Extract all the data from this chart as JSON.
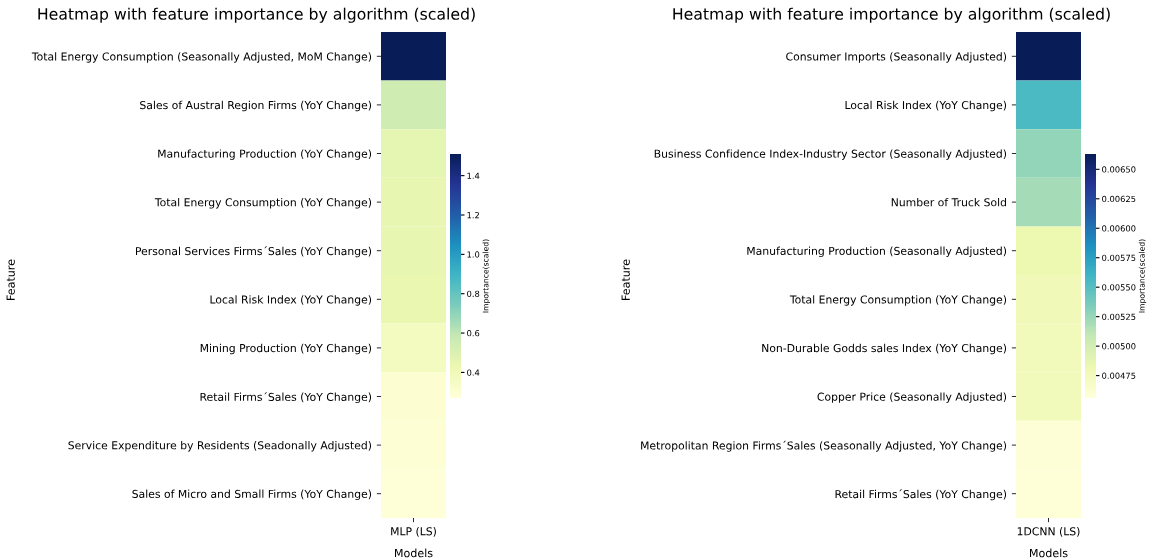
{
  "chart_data": [
    {
      "type": "heatmap",
      "title": "Heatmap with feature importance by algorithm (scaled)",
      "xlabel": "Models",
      "ylabel": "Feature",
      "clabel": "Importance(scaled)",
      "categories": [
        "MLP (LS)"
      ],
      "y_categories": [
        "Total Energy Consumption (Seasonally Adjusted, MoM Change)",
        "Sales of Austral Region Firms (YoY Change)",
        "Manufacturing Production (YoY Change)",
        "Total Energy Consumption (YoY Change)",
        "Personal Services Firms´Sales (YoY Change)",
        "Local Risk Index (YoY Change)",
        "Mining Production (YoY Change)",
        "Retail Firms´Sales (YoY Change)",
        "Service Expenditure by Residents (Seadonally Adjusted)",
        "Sales of Micro and Small Firms (YoY Change)"
      ],
      "cells": [
        [
          1.51
        ],
        [
          0.55
        ],
        [
          0.46
        ],
        [
          0.45
        ],
        [
          0.45
        ],
        [
          0.44
        ],
        [
          0.37
        ],
        [
          0.3
        ],
        [
          0.29
        ],
        [
          0.28
        ]
      ],
      "clim": [
        0.27,
        1.51
      ],
      "cticks": [
        0.4,
        0.6,
        0.8,
        {
          "value": 1.0,
          "label": "1.0"
        },
        1.2,
        1.4
      ]
    },
    {
      "type": "heatmap",
      "title": "Heatmap with feature importance by algorithm (scaled)",
      "xlabel": "Models",
      "ylabel": "Feature",
      "clabel": "Importance(scaled)",
      "categories": [
        "1DCNN (LS)"
      ],
      "y_categories": [
        "Consumer Imports (Seasonally Adjusted)",
        "Local Risk Index (YoY Change)",
        "Business Confidence Index-Industry Sector (Seasonally Adjusted)",
        "Number of Truck Sold",
        "Manufacturing Production (Seasonally Adjusted)",
        "Total Energy Consumption (YoY Change)",
        "Non-Durable Godds sales Index (YoY Change)",
        "Copper Price (Seasonally Adjusted)",
        "Metropolitan Region Firms´Sales (Seasonally Adjusted, YoY Change)",
        "Retail Firms´Sales (YoY Change)"
      ],
      "cells": [
        [
          0.00663
        ],
        [
          0.00555
        ],
        [
          0.00527
        ],
        [
          0.0052
        ],
        [
          0.00482
        ],
        [
          0.00478
        ],
        [
          0.00477
        ],
        [
          0.00476
        ],
        [
          0.00459
        ],
        [
          0.00458
        ]
      ],
      "clim": [
        0.00456,
        0.00663
      ],
      "cticks": [
        0.00475,
        {
          "value": 0.005,
          "label": "0.00500"
        },
        0.00525,
        {
          "value": 0.0055,
          "label": "0.00550"
        },
        0.00575,
        {
          "value": 0.006,
          "label": "0.00600"
        },
        0.00625,
        {
          "value": 0.0065,
          "label": "0.00650"
        }
      ]
    }
  ]
}
